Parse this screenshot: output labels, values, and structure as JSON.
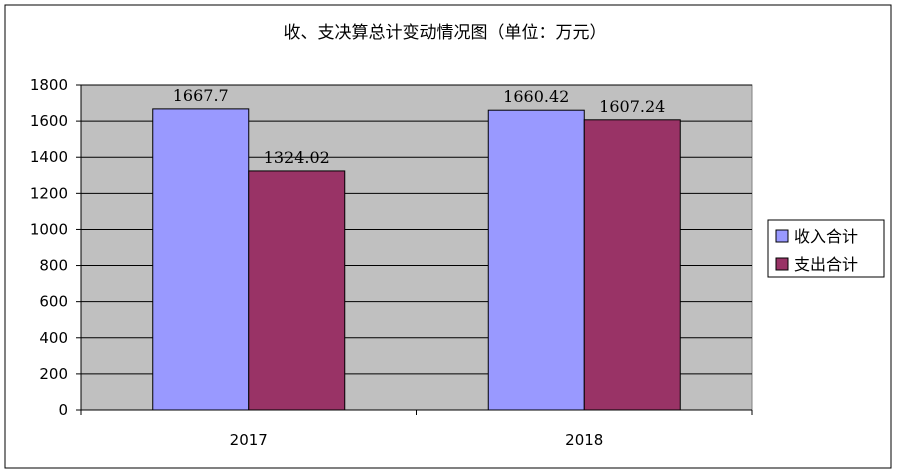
{
  "chart_data": {
    "type": "bar",
    "title": "收、支决算总计变动情况图（单位：万元）",
    "categories": [
      "2017",
      "2018"
    ],
    "series": [
      {
        "name": "收入合计",
        "values": [
          1667.7,
          1660.42
        ],
        "labels": [
          "1667.7",
          "1660.42"
        ],
        "color": "#9999ff"
      },
      {
        "name": "支出合计",
        "values": [
          1324.02,
          1607.24
        ],
        "labels": [
          "1324.02",
          "1607.24"
        ],
        "color": "#993366"
      }
    ],
    "ylim": [
      0,
      1800
    ],
    "yticks": [
      "0",
      "200",
      "400",
      "600",
      "800",
      "1000",
      "1200",
      "1400",
      "1600",
      "1800"
    ],
    "xlabel": "",
    "ylabel": "",
    "grid": true,
    "legend_position": "right",
    "plot_background": "#c0c0c0"
  }
}
